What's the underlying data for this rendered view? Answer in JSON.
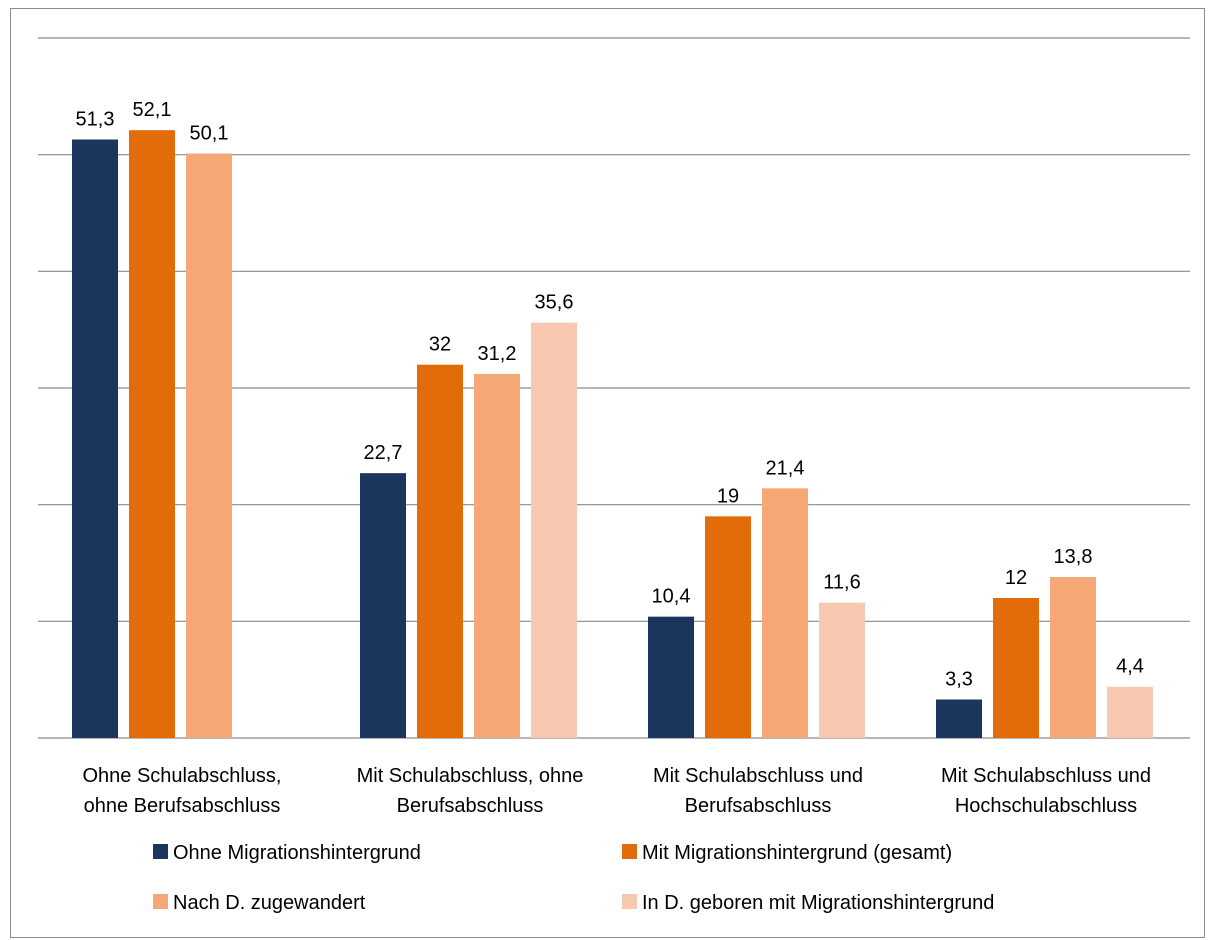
{
  "chart_data": {
    "type": "bar",
    "title": "",
    "xlabel": "",
    "ylabel": "",
    "ylim": [
      0,
      60
    ],
    "gridlines": [
      0,
      10,
      20,
      30,
      40,
      50,
      60
    ],
    "grid": true,
    "legend_position": "bottom",
    "categories": [
      [
        "Ohne Schulabschluss,",
        "ohne Berufsabschluss"
      ],
      [
        "Mit Schulabschluss, ohne",
        "Berufsabschluss"
      ],
      [
        "Mit Schulabschluss und",
        "Berufsabschluss"
      ],
      [
        "Mit Schulabschluss und",
        "Hochschulabschluss"
      ]
    ],
    "series": [
      {
        "name": "Ohne Migrationshintergrund",
        "color": "#1b365d",
        "values": [
          51.3,
          22.7,
          10.4,
          3.3
        ],
        "labels": [
          "51,3",
          "22,7",
          "10,4",
          "3,3"
        ]
      },
      {
        "name": "Mit Migrationshintergrund (gesamt)",
        "color": "#e36c0a",
        "values": [
          52.1,
          32,
          19,
          12
        ],
        "labels": [
          "52,1",
          "32",
          "19",
          "12"
        ]
      },
      {
        "name": "Nach D. zugewandert",
        "color": "#f5a876",
        "values": [
          50.1,
          31.2,
          21.4,
          13.8
        ],
        "labels": [
          "50,1",
          "31,2",
          "21,4",
          "13,8"
        ]
      },
      {
        "name": "In D. geboren mit Migrationshintergrund",
        "color": "#f8c8b0",
        "values": [
          null,
          35.6,
          11.6,
          4.4
        ],
        "labels": [
          "",
          "35,6",
          "11,6",
          "4,4"
        ]
      }
    ]
  }
}
